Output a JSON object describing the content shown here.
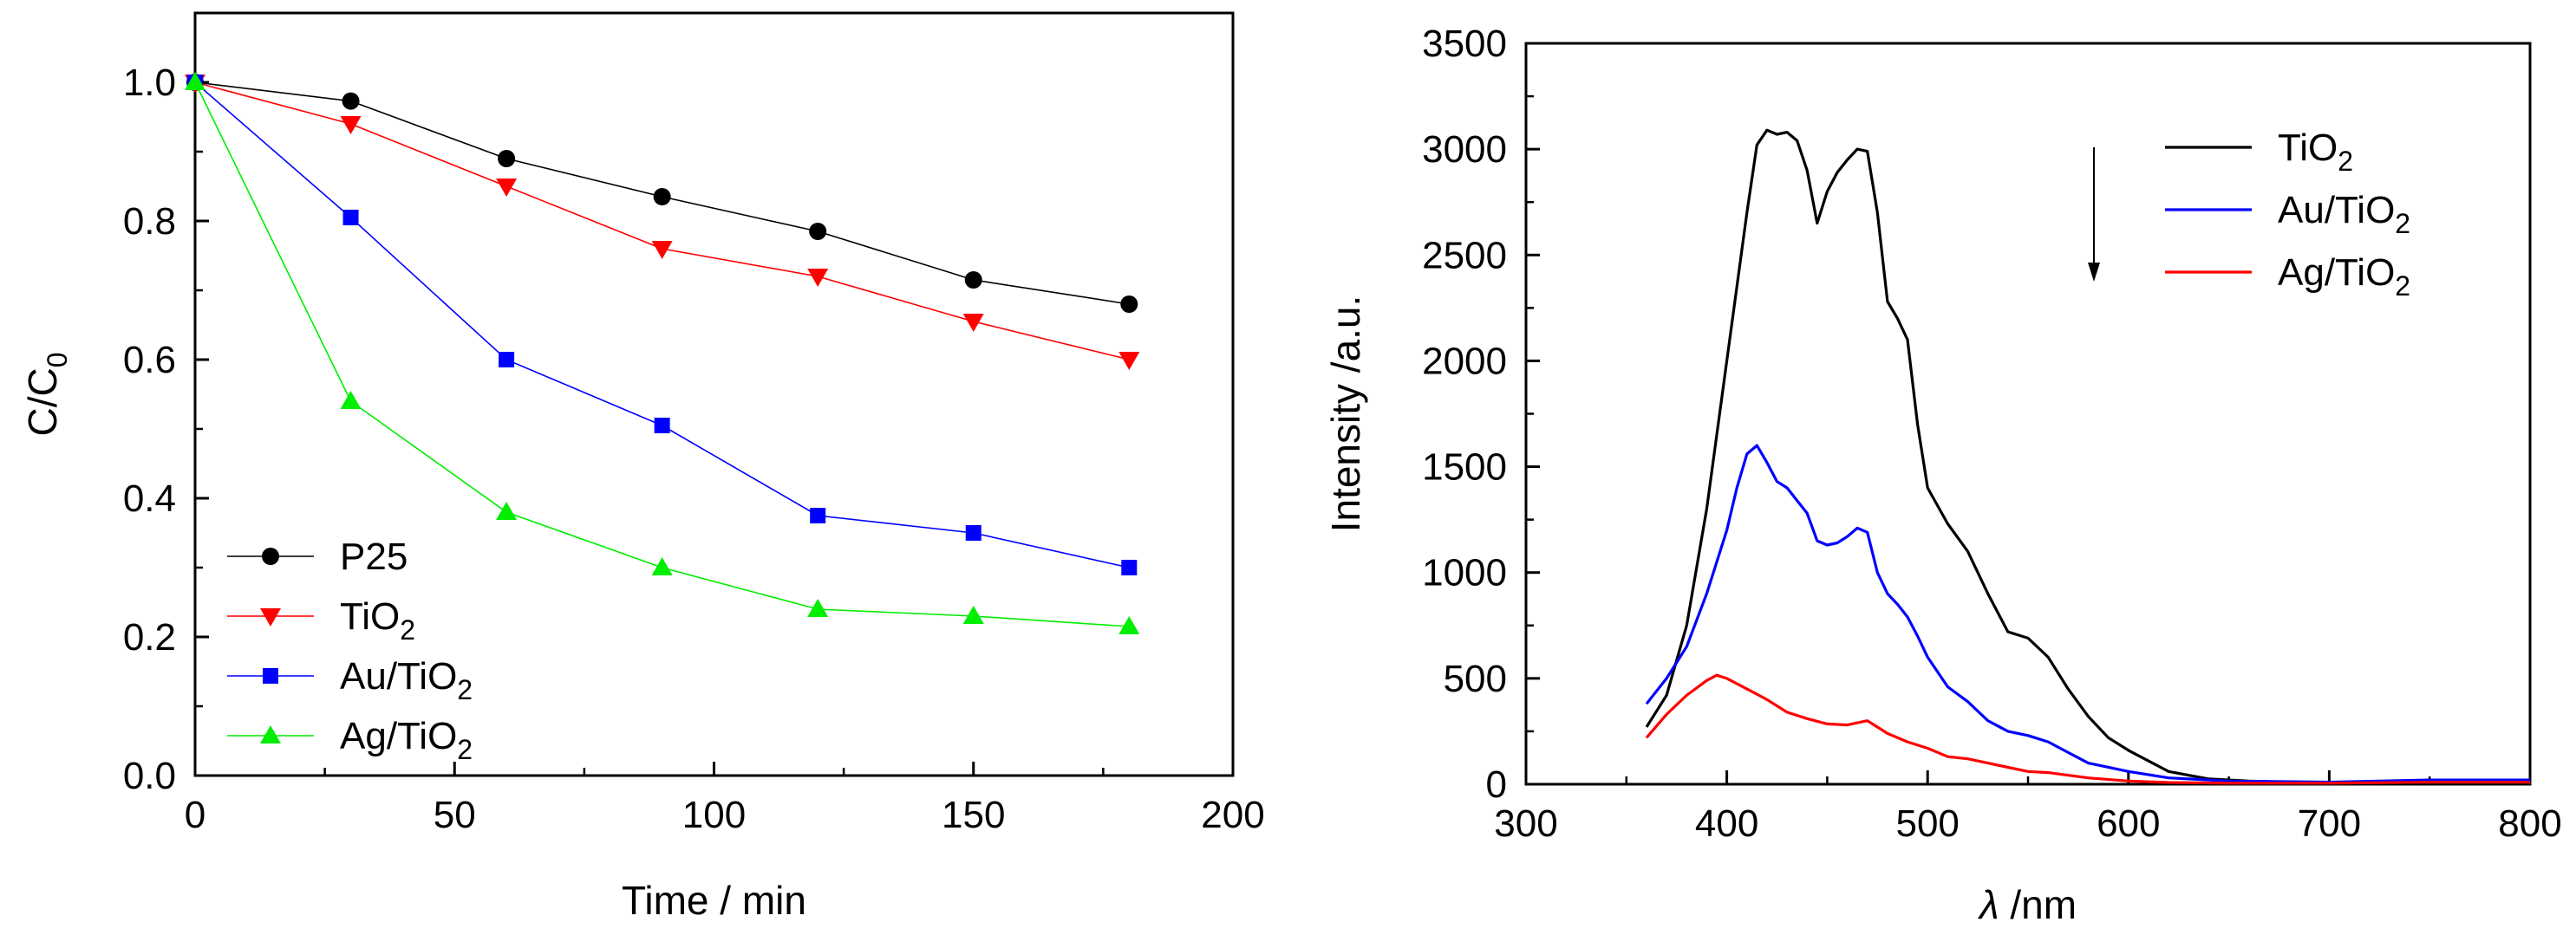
{
  "chart_data": [
    {
      "type": "line",
      "id": "degradation",
      "xlabel": "Time / min",
      "ylabel": {
        "main": "C/C",
        "sub": "0"
      },
      "xlim": [
        0,
        200
      ],
      "ylim": [
        0.0,
        1.1
      ],
      "xticks": [
        0,
        50,
        100,
        150,
        200
      ],
      "xtick_labels": [
        "0",
        "50",
        "100",
        "150",
        "200"
      ],
      "yticks": [
        0.0,
        0.2,
        0.4,
        0.6,
        0.8,
        1.0
      ],
      "ytick_labels": [
        "0.0",
        "0.2",
        "0.4",
        "0.6",
        "0.8",
        "1.0"
      ],
      "legend_position": "bottom-left",
      "x": [
        0,
        30,
        60,
        90,
        120,
        150,
        180
      ],
      "series": [
        {
          "name": "P25",
          "name_main": "P25",
          "name_sub": "",
          "color": "#000000",
          "marker": "circle",
          "values": [
            1.0,
            0.973,
            0.89,
            0.835,
            0.785,
            0.715,
            0.68
          ]
        },
        {
          "name": "TiO2",
          "name_main": "TiO",
          "name_sub": "2",
          "color": "#ff0000",
          "marker": "triangle-down",
          "values": [
            1.0,
            0.94,
            0.85,
            0.76,
            0.72,
            0.655,
            0.6
          ]
        },
        {
          "name": "Au/TiO2",
          "name_main": "Au/TiO",
          "name_sub": "2",
          "color": "#0000ff",
          "marker": "square",
          "values": [
            1.0,
            0.805,
            0.6,
            0.505,
            0.375,
            0.35,
            0.3
          ]
        },
        {
          "name": "Ag/TiO2",
          "name_main": "Ag/TiO",
          "name_sub": "2",
          "color": "#00ee00",
          "marker": "triangle-up",
          "values": [
            1.0,
            0.54,
            0.38,
            0.3,
            0.24,
            0.23,
            0.215
          ]
        }
      ]
    },
    {
      "type": "line",
      "id": "photoluminescence",
      "xlabel": {
        "symbol": "λ",
        "rest": " /nm"
      },
      "ylabel": "Intensity /a.u.",
      "xlim": [
        300,
        800
      ],
      "ylim": [
        0,
        3500
      ],
      "xticks": [
        300,
        400,
        500,
        600,
        700,
        800
      ],
      "xtick_labels": [
        "300",
        "400",
        "500",
        "600",
        "700",
        "800"
      ],
      "yticks": [
        0,
        500,
        1000,
        1500,
        2000,
        2500,
        3000,
        3500
      ],
      "ytick_labels": [
        "0",
        "500",
        "1000",
        "1500",
        "2000",
        "2500",
        "3000",
        "3500"
      ],
      "legend_position": "top-right",
      "annotation": "downward arrow beside legend",
      "series": [
        {
          "name": "TiO2",
          "name_main": "TiO",
          "name_sub": "2",
          "color": "#000000",
          "x": [
            360,
            370,
            380,
            390,
            400,
            410,
            415,
            420,
            425,
            430,
            435,
            440,
            445,
            450,
            455,
            460,
            465,
            470,
            475,
            480,
            485,
            490,
            495,
            500,
            510,
            520,
            530,
            540,
            550,
            560,
            570,
            580,
            590,
            600,
            620,
            640,
            660,
            680,
            700,
            750,
            800
          ],
          "y": [
            270,
            420,
            750,
            1300,
            2000,
            2700,
            3020,
            3090,
            3070,
            3080,
            3040,
            2900,
            2650,
            2800,
            2890,
            2950,
            3000,
            2990,
            2700,
            2280,
            2200,
            2100,
            1700,
            1400,
            1230,
            1100,
            900,
            720,
            690,
            600,
            450,
            320,
            220,
            160,
            60,
            25,
            15,
            10,
            5,
            10,
            10
          ]
        },
        {
          "name": "Au/TiO2",
          "name_main": "Au/TiO",
          "name_sub": "2",
          "color": "#0000ff",
          "x": [
            360,
            370,
            380,
            390,
            400,
            405,
            410,
            415,
            420,
            425,
            430,
            435,
            440,
            445,
            450,
            455,
            460,
            465,
            470,
            475,
            480,
            485,
            490,
            495,
            500,
            510,
            520,
            530,
            540,
            550,
            560,
            570,
            580,
            600,
            620,
            650,
            700,
            750,
            800
          ],
          "y": [
            380,
            500,
            650,
            900,
            1200,
            1400,
            1560,
            1600,
            1520,
            1430,
            1400,
            1340,
            1280,
            1150,
            1130,
            1140,
            1170,
            1210,
            1190,
            1000,
            900,
            850,
            790,
            700,
            600,
            460,
            390,
            300,
            250,
            230,
            200,
            150,
            100,
            60,
            30,
            15,
            10,
            20,
            20
          ]
        },
        {
          "name": "Ag/TiO2",
          "name_main": "Ag/TiO",
          "name_sub": "2",
          "color": "#ff0000",
          "x": [
            360,
            370,
            380,
            390,
            395,
            400,
            410,
            420,
            430,
            440,
            450,
            460,
            470,
            480,
            490,
            500,
            510,
            520,
            530,
            540,
            550,
            560,
            580,
            600,
            620,
            650,
            700,
            750,
            800
          ],
          "y": [
            220,
            330,
            420,
            490,
            515,
            500,
            450,
            400,
            340,
            310,
            285,
            280,
            300,
            240,
            200,
            170,
            130,
            120,
            100,
            80,
            60,
            55,
            30,
            15,
            8,
            5,
            5,
            10,
            10
          ]
        }
      ]
    }
  ]
}
